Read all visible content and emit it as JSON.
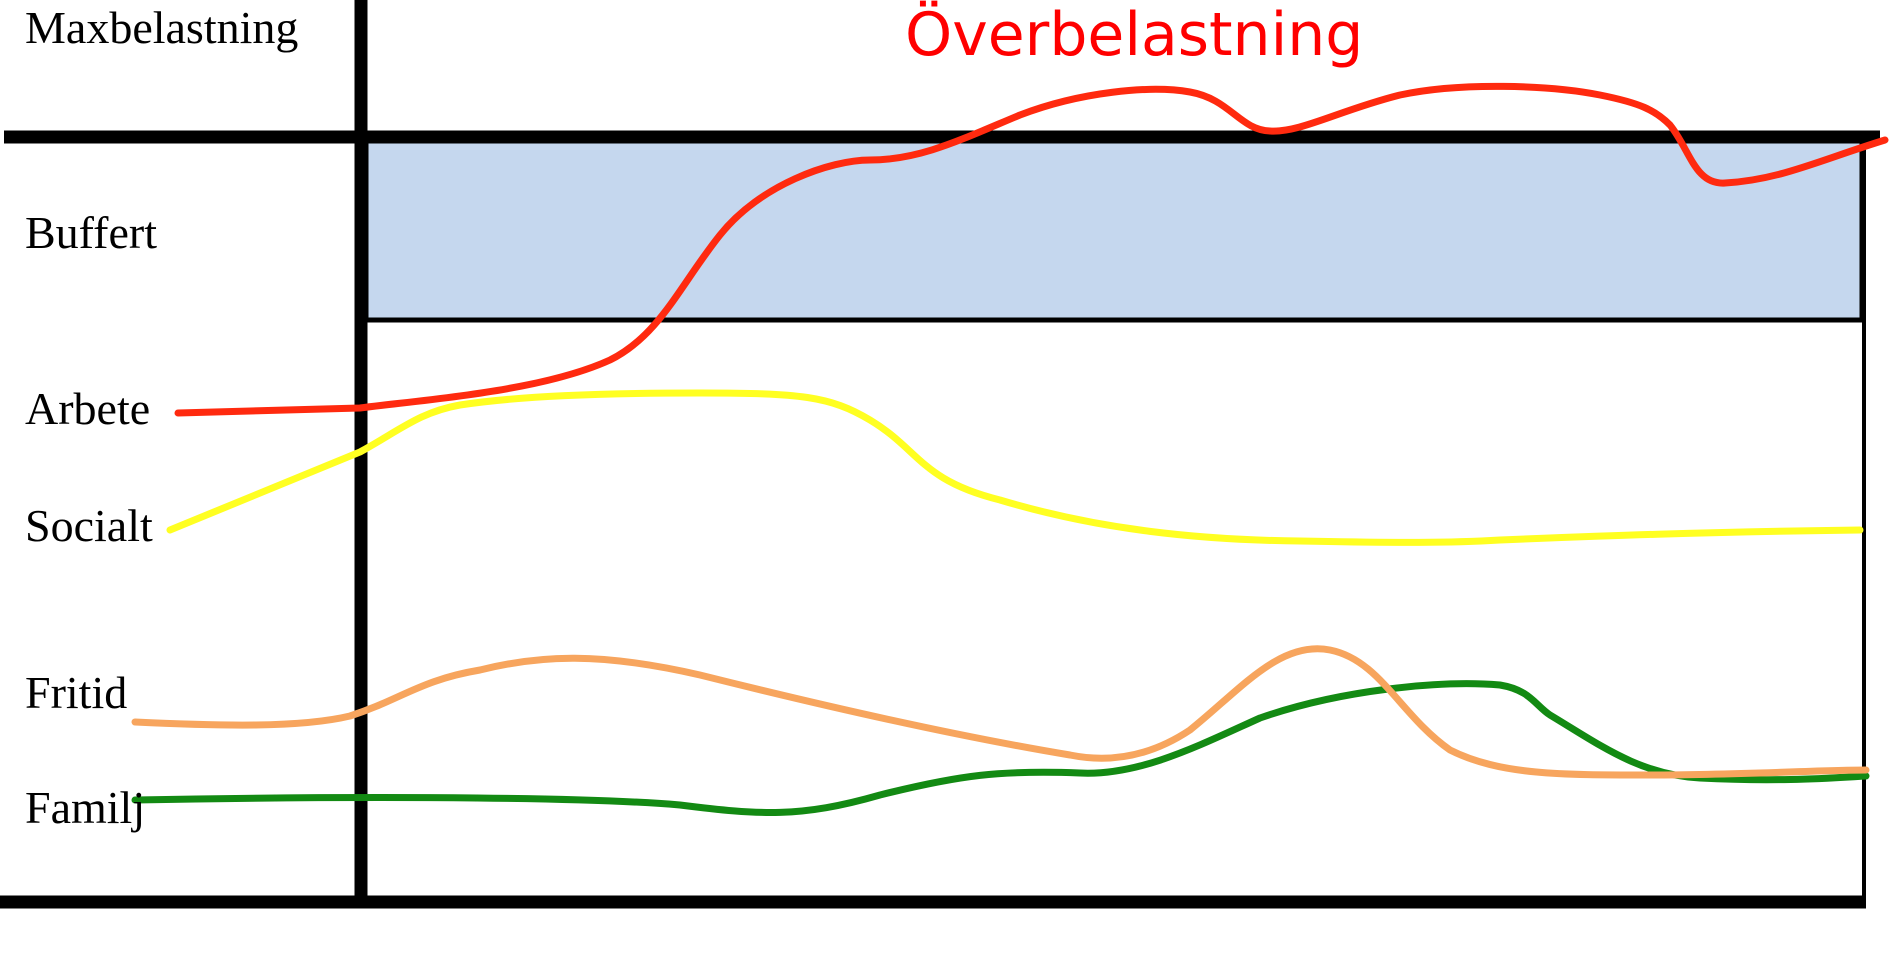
{
  "title": "Överbelastning",
  "labels": {
    "max": "Maxbelastning",
    "buffer": "Buffert",
    "work": "Arbete",
    "social": "Socialt",
    "leisure": "Fritid",
    "family": "Familj"
  },
  "colors": {
    "title": "#ff0000",
    "buffer_fill": "#c5d7ee",
    "work": "#ff2a0f",
    "social": "#ffff22",
    "leisure": "#f7a55e",
    "family": "#138a13",
    "axes": "#000000"
  }
}
